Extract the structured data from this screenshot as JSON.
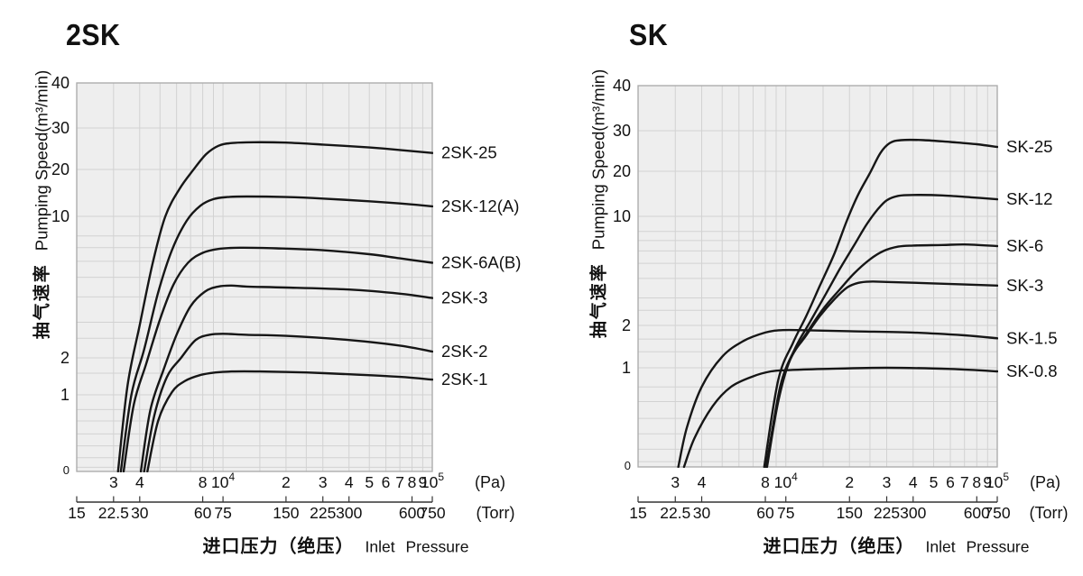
{
  "colors": {
    "background": "#ffffff",
    "plot_bg": "#eeeeee",
    "grid": "#d2d2d2",
    "border": "#a8a8a8",
    "curve": "#161616",
    "ruler": "#333333",
    "text": "#111111"
  },
  "chart_data": [
    {
      "type": "line",
      "title": "2SK",
      "y_axis": {
        "label_cn": "抽气速率",
        "label_en": "Pumping Speed(m³/min)",
        "scale": "log-like",
        "ticks": [
          {
            "label": "40",
            "v": 40
          },
          {
            "label": "30",
            "v": 30
          },
          {
            "label": "20",
            "v": 20
          },
          {
            "label": "10",
            "v": 10
          },
          {
            "label": "2",
            "v": 2
          },
          {
            "label": "1",
            "v": 1
          },
          {
            "label": "0",
            "v": 0.43,
            "small": true
          }
        ]
      },
      "x_axis": {
        "label_cn": "进口压力（绝压）",
        "label_en": "Inlet Pressure",
        "scale": "log",
        "range_pa": [
          2000,
          100000
        ],
        "pa_unit": "(Pa)",
        "torr_unit": "(Torr)",
        "pa_ticks": [
          {
            "label": "3",
            "pa": 3000
          },
          {
            "label": "4",
            "pa": 4000
          },
          {
            "label": "8",
            "pa": 8000
          },
          {
            "label": "10^4",
            "pa": 10000
          },
          {
            "label": "2",
            "pa": 20000
          },
          {
            "label": "3",
            "pa": 30000
          },
          {
            "label": "4",
            "pa": 40000
          },
          {
            "label": "5",
            "pa": 50000
          },
          {
            "label": "6",
            "pa": 60000
          },
          {
            "label": "7",
            "pa": 70000
          },
          {
            "label": "8",
            "pa": 80000
          },
          {
            "label": "9",
            "pa": 90000
          },
          {
            "label": "10^5",
            "pa": 100000
          }
        ],
        "torr_ticks": [
          {
            "label": "15",
            "pa": 2000
          },
          {
            "label": "22.5",
            "pa": 3000
          },
          {
            "label": "30",
            "pa": 4000
          },
          {
            "label": "60",
            "pa": 8000
          },
          {
            "label": "75",
            "pa": 10000
          },
          {
            "label": "150",
            "pa": 20000
          },
          {
            "label": "225",
            "pa": 30000
          },
          {
            "label": "300",
            "pa": 40000
          },
          {
            "label": "600",
            "pa": 80000
          },
          {
            "label": "750",
            "pa": 100000
          }
        ]
      },
      "series": [
        {
          "name": "2SK-25",
          "points": [
            [
              3150,
              0.43
            ],
            [
              3500,
              1.2
            ],
            [
              4000,
              2.9
            ],
            [
              4600,
              5.8
            ],
            [
              5300,
              10
            ],
            [
              6200,
              15
            ],
            [
              7200,
              19.8
            ],
            [
              8300,
              23.2
            ],
            [
              9500,
              25.2
            ],
            [
              11000,
              25.9
            ],
            [
              14000,
              26.1
            ],
            [
              20000,
              26.0
            ],
            [
              30000,
              25.5
            ],
            [
              50000,
              24.8
            ],
            [
              70000,
              24.2
            ],
            [
              100000,
              23.5
            ]
          ]
        },
        {
          "name": "2SK-12(A)",
          "points": [
            [
              3250,
              0.43
            ],
            [
              3650,
              1.0
            ],
            [
              4200,
              2.2
            ],
            [
              4900,
              4.2
            ],
            [
              5700,
              6.8
            ],
            [
              6700,
              9.5
            ],
            [
              7800,
              11.7
            ],
            [
              9000,
              12.9
            ],
            [
              10500,
              13.3
            ],
            [
              13000,
              13.4
            ],
            [
              20000,
              13.3
            ],
            [
              30000,
              13.0
            ],
            [
              50000,
              12.5
            ],
            [
              70000,
              12.1
            ],
            [
              100000,
              11.6
            ]
          ]
        },
        {
          "name": "2SK-6A(B)",
          "points": [
            [
              3350,
              0.43
            ],
            [
              3750,
              0.9
            ],
            [
              4300,
              1.8
            ],
            [
              5000,
              3.1
            ],
            [
              5800,
              4.6
            ],
            [
              6800,
              5.9
            ],
            [
              8000,
              6.6
            ],
            [
              9500,
              6.9
            ],
            [
              12000,
              7.0
            ],
            [
              18000,
              6.95
            ],
            [
              30000,
              6.8
            ],
            [
              50000,
              6.5
            ],
            [
              70000,
              6.2
            ],
            [
              100000,
              5.9
            ]
          ]
        },
        {
          "name": "2SK-3",
          "points": [
            [
              4050,
              0.43
            ],
            [
              4500,
              0.85
            ],
            [
              5200,
              1.6
            ],
            [
              6000,
              2.6
            ],
            [
              7000,
              3.6
            ],
            [
              8200,
              4.25
            ],
            [
              9500,
              4.5
            ],
            [
              11000,
              4.55
            ],
            [
              13000,
              4.5
            ],
            [
              20000,
              4.45
            ],
            [
              40000,
              4.35
            ],
            [
              70000,
              4.15
            ],
            [
              100000,
              3.95
            ]
          ]
        },
        {
          "name": "2SK-2",
          "points": [
            [
              4200,
              0.43
            ],
            [
              4700,
              0.8
            ],
            [
              5400,
              1.4
            ],
            [
              6300,
              2.0
            ],
            [
              7400,
              2.45
            ],
            [
              8600,
              2.6
            ],
            [
              10000,
              2.63
            ],
            [
              13000,
              2.6
            ],
            [
              20000,
              2.57
            ],
            [
              40000,
              2.45
            ],
            [
              70000,
              2.3
            ],
            [
              100000,
              2.15
            ]
          ]
        },
        {
          "name": "2SK-1",
          "points": [
            [
              4350,
              0.43
            ],
            [
              4900,
              0.75
            ],
            [
              5700,
              1.05
            ],
            [
              6600,
              1.3
            ],
            [
              7800,
              1.45
            ],
            [
              9200,
              1.52
            ],
            [
              11000,
              1.55
            ],
            [
              15000,
              1.55
            ],
            [
              25000,
              1.52
            ],
            [
              40000,
              1.47
            ],
            [
              70000,
              1.4
            ],
            [
              100000,
              1.33
            ]
          ]
        }
      ]
    },
    {
      "type": "line",
      "title": "SK",
      "y_axis": {
        "label_cn": "抽气速率",
        "label_en": "Pumping Speed(m³/min)",
        "scale": "log-like",
        "ticks": [
          {
            "label": "40",
            "v": 40
          },
          {
            "label": "30",
            "v": 30
          },
          {
            "label": "20",
            "v": 20
          },
          {
            "label": "10",
            "v": 10
          },
          {
            "label": "2",
            "v": 2
          },
          {
            "label": "1",
            "v": 1
          },
          {
            "label": "0",
            "v": 0.43,
            "small": true
          }
        ]
      },
      "x_axis": {
        "label_cn": "进口压力（绝压）",
        "label_en": "Inlet Pressure",
        "scale": "log",
        "range_pa": [
          2000,
          100000
        ],
        "pa_unit": "(Pa)",
        "torr_unit": "(Torr)",
        "pa_ticks": [
          {
            "label": "3",
            "pa": 3000
          },
          {
            "label": "4",
            "pa": 4000
          },
          {
            "label": "8",
            "pa": 8000
          },
          {
            "label": "10^4",
            "pa": 10000
          },
          {
            "label": "2",
            "pa": 20000
          },
          {
            "label": "3",
            "pa": 30000
          },
          {
            "label": "4",
            "pa": 40000
          },
          {
            "label": "5",
            "pa": 50000
          },
          {
            "label": "6",
            "pa": 60000
          },
          {
            "label": "7",
            "pa": 70000
          },
          {
            "label": "8",
            "pa": 80000
          },
          {
            "label": "9",
            "pa": 90000
          },
          {
            "label": "10^5",
            "pa": 100000
          }
        ],
        "torr_ticks": [
          {
            "label": "15",
            "pa": 2000
          },
          {
            "label": "22.5",
            "pa": 3000
          },
          {
            "label": "30",
            "pa": 4000
          },
          {
            "label": "60",
            "pa": 8000
          },
          {
            "label": "75",
            "pa": 10000
          },
          {
            "label": "150",
            "pa": 20000
          },
          {
            "label": "225",
            "pa": 30000
          },
          {
            "label": "300",
            "pa": 40000
          },
          {
            "label": "600",
            "pa": 80000
          },
          {
            "label": "750",
            "pa": 100000
          }
        ]
      },
      "series": [
        {
          "name": "SK-25",
          "points": [
            [
              7900,
              0.43
            ],
            [
              9200,
              0.9
            ],
            [
              10800,
              1.5
            ],
            [
              12500,
              2.3
            ],
            [
              14500,
              3.6
            ],
            [
              17000,
              5.8
            ],
            [
              19500,
              9.5
            ],
            [
              22000,
              14
            ],
            [
              25000,
              19.5
            ],
            [
              28000,
              24
            ],
            [
              31000,
              26.5
            ],
            [
              35000,
              27.3
            ],
            [
              45000,
              27.3
            ],
            [
              60000,
              26.8
            ],
            [
              80000,
              26.2
            ],
            [
              100000,
              25.5
            ]
          ]
        },
        {
          "name": "SK-12",
          "points": [
            [
              8100,
              0.43
            ],
            [
              9400,
              0.85
            ],
            [
              11000,
              1.35
            ],
            [
              13000,
              2.1
            ],
            [
              15500,
              3.2
            ],
            [
              18000,
              4.6
            ],
            [
              21000,
              6.5
            ],
            [
              24000,
              8.8
            ],
            [
              27000,
              11
            ],
            [
              30000,
              12.8
            ],
            [
              34000,
              13.7
            ],
            [
              40000,
              13.9
            ],
            [
              55000,
              13.8
            ],
            [
              75000,
              13.4
            ],
            [
              100000,
              13.0
            ]
          ]
        },
        {
          "name": "SK-6",
          "points": [
            [
              8050,
              0.43
            ],
            [
              9300,
              0.8
            ],
            [
              10500,
              1.15
            ],
            [
              12500,
              1.75
            ],
            [
              15000,
              2.55
            ],
            [
              18000,
              3.4
            ],
            [
              21000,
              4.3
            ],
            [
              25000,
              5.3
            ],
            [
              29000,
              6.0
            ],
            [
              34000,
              6.4
            ],
            [
              40000,
              6.5
            ],
            [
              55000,
              6.55
            ],
            [
              70000,
              6.6
            ],
            [
              100000,
              6.45
            ]
          ]
        },
        {
          "name": "SK-3",
          "points": [
            [
              8150,
              0.43
            ],
            [
              9200,
              0.75
            ],
            [
              10500,
              1.15
            ],
            [
              12500,
              1.7
            ],
            [
              14500,
              2.3
            ],
            [
              17000,
              2.95
            ],
            [
              19500,
              3.5
            ],
            [
              22000,
              3.75
            ],
            [
              25000,
              3.82
            ],
            [
              30000,
              3.8
            ],
            [
              50000,
              3.72
            ],
            [
              100000,
              3.6
            ]
          ]
        },
        {
          "name": "SK-1.5",
          "points": [
            [
              3100,
              0.43
            ],
            [
              3400,
              0.6
            ],
            [
              4000,
              0.85
            ],
            [
              5000,
              1.2
            ],
            [
              6300,
              1.55
            ],
            [
              8000,
              1.78
            ],
            [
              9500,
              1.85
            ],
            [
              12000,
              1.85
            ],
            [
              20000,
              1.82
            ],
            [
              40000,
              1.78
            ],
            [
              70000,
              1.7
            ],
            [
              100000,
              1.62
            ]
          ]
        },
        {
          "name": "SK-0.8",
          "points": [
            [
              3300,
              0.43
            ],
            [
              3700,
              0.55
            ],
            [
              4500,
              0.72
            ],
            [
              5500,
              0.85
            ],
            [
              7000,
              0.93
            ],
            [
              8500,
              0.97
            ],
            [
              10000,
              0.98
            ],
            [
              15000,
              0.99
            ],
            [
              30000,
              1.0
            ],
            [
              60000,
              0.99
            ],
            [
              100000,
              0.97
            ]
          ]
        }
      ]
    }
  ]
}
